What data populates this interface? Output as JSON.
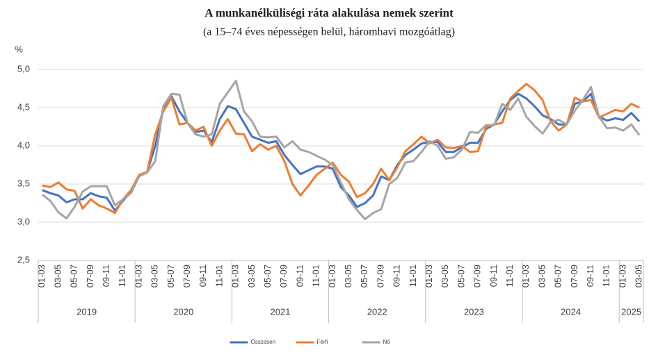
{
  "chart_data": {
    "type": "line",
    "title": "A munkanélküliségi ráta alakulása nemek szerint",
    "subtitle": "(a 15–74 éves népességen belül, háromhavi mozgóátlag)",
    "ylabel": "%",
    "categories": [
      "01-03",
      null,
      "03-05",
      null,
      "05-07",
      null,
      "07-09",
      null,
      "09-11",
      null,
      "11-01",
      null,
      "01-03",
      null,
      "03-05",
      null,
      "05-07",
      null,
      "07-09",
      null,
      "09-11",
      null,
      "11-01",
      null,
      "01-03",
      null,
      "03-05",
      null,
      "05-07",
      null,
      "07-09",
      null,
      "09-11",
      null,
      "11-01",
      null,
      "01-03",
      null,
      "03-05",
      null,
      "05-07",
      null,
      "07-09",
      null,
      "09-11",
      null,
      "11-01",
      null,
      "01-03",
      null,
      "03-05",
      null,
      "05-07",
      null,
      "07-09",
      null,
      "09-11",
      null,
      "11-01",
      null,
      "01-03",
      null,
      "03-05",
      null,
      "05-07",
      null,
      "07-09",
      null,
      "09-11",
      null,
      "11-01",
      null,
      "01-03",
      null,
      "03-05"
    ],
    "years": [
      "2019",
      "2020",
      "2021",
      "2022",
      "2023",
      "2024",
      "2025"
    ],
    "series": [
      {
        "name": "Összesen",
        "color": "#4472c4",
        "values": [
          3.42,
          3.38,
          3.35,
          3.26,
          3.3,
          3.3,
          3.38,
          3.34,
          3.32,
          3.15,
          3.28,
          3.4,
          3.6,
          3.66,
          4.0,
          4.5,
          4.65,
          4.45,
          4.3,
          4.18,
          4.2,
          4.05,
          4.35,
          4.52,
          4.48,
          4.3,
          4.12,
          4.08,
          4.04,
          4.06,
          3.88,
          3.75,
          3.63,
          3.68,
          3.73,
          3.73,
          3.7,
          3.46,
          3.35,
          3.2,
          3.25,
          3.35,
          3.6,
          3.55,
          3.75,
          3.88,
          3.95,
          4.03,
          4.05,
          4.05,
          3.92,
          3.92,
          3.98,
          4.04,
          4.04,
          4.22,
          4.28,
          4.45,
          4.6,
          4.68,
          4.62,
          4.52,
          4.4,
          4.35,
          4.28,
          4.28,
          4.55,
          4.58,
          4.68,
          4.38,
          4.33,
          4.36,
          4.34,
          4.43,
          4.32
        ]
      },
      {
        "name": "Férfi",
        "color": "#ed7d31",
        "values": [
          3.48,
          3.46,
          3.52,
          3.43,
          3.41,
          3.18,
          3.3,
          3.22,
          3.18,
          3.12,
          3.3,
          3.42,
          3.62,
          3.66,
          4.15,
          4.45,
          4.63,
          4.28,
          4.3,
          4.2,
          4.25,
          4.0,
          4.2,
          4.35,
          4.16,
          4.15,
          3.93,
          4.02,
          3.95,
          4.0,
          3.8,
          3.5,
          3.35,
          3.48,
          3.62,
          3.7,
          3.78,
          3.62,
          3.53,
          3.33,
          3.38,
          3.5,
          3.7,
          3.55,
          3.72,
          3.93,
          4.02,
          4.12,
          4.03,
          4.08,
          3.98,
          3.97,
          4.0,
          3.92,
          3.93,
          4.25,
          4.28,
          4.3,
          4.62,
          4.72,
          4.81,
          4.73,
          4.6,
          4.32,
          4.2,
          4.28,
          4.63,
          4.58,
          4.6,
          4.37,
          4.42,
          4.47,
          4.45,
          4.55,
          4.5
        ]
      },
      {
        "name": "Nő",
        "color": "#a5a5a5",
        "values": [
          3.36,
          3.28,
          3.13,
          3.05,
          3.2,
          3.4,
          3.47,
          3.47,
          3.47,
          3.22,
          3.3,
          3.38,
          3.6,
          3.65,
          3.8,
          4.52,
          4.68,
          4.67,
          4.3,
          4.15,
          4.12,
          4.15,
          4.55,
          4.7,
          4.85,
          4.45,
          4.32,
          4.12,
          4.11,
          4.12,
          3.98,
          4.06,
          3.95,
          3.92,
          3.87,
          3.82,
          3.75,
          3.52,
          3.3,
          3.16,
          3.04,
          3.12,
          3.17,
          3.5,
          3.58,
          3.78,
          3.8,
          3.92,
          4.06,
          4.0,
          3.83,
          3.85,
          3.95,
          4.18,
          4.17,
          4.27,
          4.27,
          4.55,
          4.47,
          4.62,
          4.38,
          4.26,
          4.16,
          4.31,
          4.34,
          4.28,
          4.46,
          4.6,
          4.77,
          4.38,
          4.23,
          4.24,
          4.2,
          4.28,
          4.14
        ]
      }
    ],
    "ylim": [
      2.5,
      5.0
    ],
    "yticks": [
      {
        "value": 2.5,
        "label": "2,5"
      },
      {
        "value": 3.0,
        "label": "3,0"
      },
      {
        "value": 3.5,
        "label": "3,5"
      },
      {
        "value": 4.0,
        "label": "4,0"
      },
      {
        "value": 4.5,
        "label": "4,5"
      },
      {
        "value": 5.0,
        "label": "5,0"
      }
    ],
    "grid": true,
    "legend": "bottom"
  }
}
